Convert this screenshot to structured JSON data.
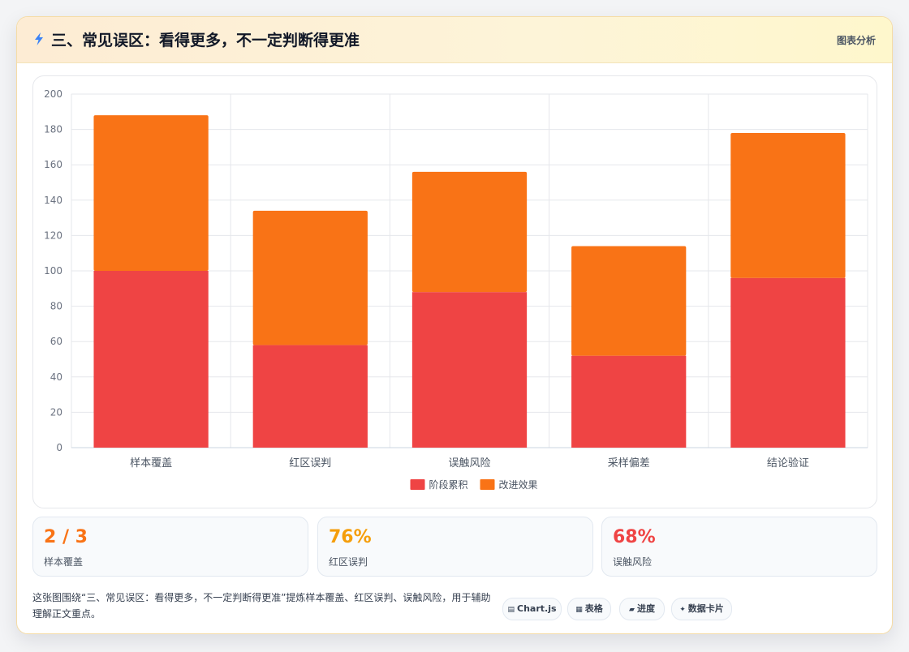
{
  "header": {
    "title": "三、常见误区：看得更多，不一定判断得更准",
    "tag": "图表分析"
  },
  "chart_data": {
    "type": "bar",
    "stacked": true,
    "categories": [
      "样本覆盖",
      "红区误判",
      "误触风险",
      "采样偏差",
      "结论验证"
    ],
    "series": [
      {
        "name": "阶段累积",
        "color": "#ef4444",
        "values": [
          100,
          58,
          88,
          52,
          96
        ]
      },
      {
        "name": "改进效果",
        "color": "#f97316",
        "values": [
          88,
          76,
          68,
          62,
          82
        ]
      }
    ],
    "ylim": [
      0,
      200
    ],
    "yticks": [
      0,
      20,
      40,
      60,
      80,
      100,
      120,
      140,
      160,
      180,
      200
    ],
    "grid": true,
    "legend": "bottom"
  },
  "stats": [
    {
      "value": "2 / 3",
      "label": "样本覆盖",
      "color": "#f97316"
    },
    {
      "value": "76%",
      "label": "红区误判",
      "color": "#f59e0b"
    },
    {
      "value": "68%",
      "label": "误触风险",
      "color": "#ef4444"
    }
  ],
  "footer": {
    "description": "这张图围绕“三、常见误区：看得更多，不一定判断得更准”提炼样本覆盖、红区误判、误触风险，用于辅助理解正文重点。"
  },
  "pills": [
    {
      "icon": "▤",
      "label": "Chart.js"
    },
    {
      "icon": "▦",
      "label": "表格"
    },
    {
      "icon": "▰",
      "label": "进度"
    },
    {
      "icon": "✦",
      "label": "数据卡片"
    }
  ]
}
